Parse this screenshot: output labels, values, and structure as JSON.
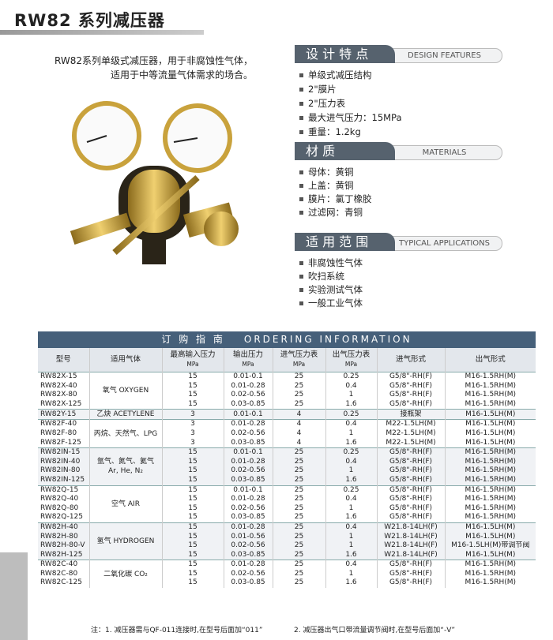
{
  "header": {
    "title": "RW82 系列减压器"
  },
  "intro": [
    "RW82系列单级式减压器，用于非腐蚀性气体，",
    "适用于中等流量气体需求的场合。"
  ],
  "sections": [
    {
      "title": "设 计 特 点",
      "subtitle": "DESIGN FEATURES",
      "items": [
        "单级式减压结构",
        "2\"膜片",
        "2\"压力表",
        "最大进气压力：15MPa",
        "重量：1.2kg"
      ]
    },
    {
      "title": "材 质",
      "subtitle": "MATERIALS",
      "items": [
        "母体：黄铜",
        "上盖：黄铜",
        "膜片：氯丁橡胶",
        "过滤网：青铜"
      ]
    },
    {
      "title": "适 用 范 围",
      "subtitle": "TYPICAL APPLICATIONS",
      "items": [
        "非腐蚀性气体",
        "吹扫系统",
        "实验测试气体",
        "一般工业气体"
      ]
    }
  ],
  "table": {
    "title": "订 购 指 南",
    "title_en": "ORDERING INFORMATION",
    "columns": [
      {
        "name": "型号"
      },
      {
        "name": "适用气体"
      },
      {
        "name": "最高输入压力",
        "unit": "MPa"
      },
      {
        "name": "输出压力",
        "unit": "MPa"
      },
      {
        "name": "进气压力表",
        "unit": "MPa"
      },
      {
        "name": "出气压力表",
        "unit": "MPa"
      },
      {
        "name": "进气形式"
      },
      {
        "name": "出气形式"
      }
    ],
    "groups": [
      {
        "gas": [
          "氧气 OXYGEN"
        ],
        "rows": [
          [
            "RW82X-15",
            "15",
            "0.01-0.1",
            "25",
            "0.25",
            "G5/8\"-RH(F)",
            "M16-1.5RH(M)"
          ],
          [
            "RW82X-40",
            "15",
            "0.01-0.28",
            "25",
            "0.4",
            "G5/8\"-RH(F)",
            "M16-1.5RH(M)"
          ],
          [
            "RW82X-80",
            "15",
            "0.02-0.56",
            "25",
            "1",
            "G5/8\"-RH(F)",
            "M16-1.5RH(M)"
          ],
          [
            "RW82X-125",
            "15",
            "0.03-0.85",
            "25",
            "1.6",
            "G5/8\"-RH(F)",
            "M16-1.5RH(M)"
          ]
        ]
      },
      {
        "gas": [
          "乙炔 ACETYLENE"
        ],
        "rows": [
          [
            "RW82Y-15",
            "3",
            "0.01-0.1",
            "4",
            "0.25",
            "接瓶架",
            "M16-1.5LH(M)"
          ]
        ]
      },
      {
        "gas": [
          "丙烷、天然气、LPG"
        ],
        "rows": [
          [
            "RW82F-40",
            "3",
            "0.01-0.28",
            "4",
            "0.4",
            "M22-1.5LH(M)",
            "M16-1.5LH(M)"
          ],
          [
            "RW82F-80",
            "3",
            "0.02-0.56",
            "4",
            "1",
            "M22-1.5LH(M)",
            "M16-1.5LH(M)"
          ],
          [
            "RW82F-125",
            "3",
            "0.03-0.85",
            "4",
            "1.6",
            "M22-1.5LH(M)",
            "M16-1.5LH(M)"
          ]
        ]
      },
      {
        "gas": [
          "氩气、氮气、氦气",
          "Ar, He, N₂"
        ],
        "rows": [
          [
            "RW82IN-15",
            "15",
            "0.01-0.1",
            "25",
            "0.25",
            "G5/8\"-RH(F)",
            "M16-1.5RH(M)"
          ],
          [
            "RW82IN-40",
            "15",
            "0.01-0.28",
            "25",
            "0.4",
            "G5/8\"-RH(F)",
            "M16-1.5RH(M)"
          ],
          [
            "RW82IN-80",
            "15",
            "0.02-0.56",
            "25",
            "1",
            "G5/8\"-RH(F)",
            "M16-1.5RH(M)"
          ],
          [
            "RW82IN-125",
            "15",
            "0.03-0.85",
            "25",
            "1.6",
            "G5/8\"-RH(F)",
            "M16-1.5RH(M)"
          ]
        ]
      },
      {
        "gas": [
          "空气 AIR"
        ],
        "rows": [
          [
            "RW82Q-15",
            "15",
            "0.01-0.1",
            "25",
            "0.25",
            "G5/8\"-RH(F)",
            "M16-1.5RH(M)"
          ],
          [
            "RW82Q-40",
            "15",
            "0.01-0.28",
            "25",
            "0.4",
            "G5/8\"-RH(F)",
            "M16-1.5RH(M)"
          ],
          [
            "RW82Q-80",
            "15",
            "0.02-0.56",
            "25",
            "1",
            "G5/8\"-RH(F)",
            "M16-1.5RH(M)"
          ],
          [
            "RW82Q-125",
            "15",
            "0.03-0.85",
            "25",
            "1.6",
            "G5/8\"-RH(F)",
            "M16-1.5RH(M)"
          ]
        ]
      },
      {
        "gas": [
          "氢气 HYDROGEN"
        ],
        "rows": [
          [
            "RW82H-40",
            "15",
            "0.01-0.28",
            "25",
            "0.4",
            "W21.8-14LH(F)",
            "M16-1.5LH(M)"
          ],
          [
            "RW82H-80",
            "15",
            "0.01-0.56",
            "25",
            "1",
            "W21.8-14LH(F)",
            "M16-1.5LH(M)"
          ],
          [
            "RW82H-80-V",
            "15",
            "0.02-0.56",
            "25",
            "1",
            "W21.8-14LH(F)",
            "M16-1.5LH(M)带调节阀"
          ],
          [
            "RW82H-125",
            "15",
            "0.03-0.85",
            "25",
            "1.6",
            "W21.8-14LH(F)",
            "M16-1.5LH(M)"
          ]
        ]
      },
      {
        "gas": [
          "二氧化碳 CO₂"
        ],
        "rows": [
          [
            "RW82C-40",
            "15",
            "0.01-0.28",
            "25",
            "0.4",
            "G5/8\"-RH(F)",
            "M16-1.5RH(M)"
          ],
          [
            "RW82C-80",
            "15",
            "0.02-0.56",
            "25",
            "1",
            "G5/8\"-RH(F)",
            "M16-1.5RH(M)"
          ],
          [
            "RW82C-125",
            "15",
            "0.03-0.85",
            "25",
            "1.6",
            "G5/8\"-RH(F)",
            "M16-1.5RH(M)"
          ]
        ]
      }
    ]
  },
  "notes": [
    "注：1. 减压器需与QF-011连接时,在型号后面加“011”",
    "2. 减压器出气口带流量调节阀时,在型号后面加“-V”"
  ]
}
